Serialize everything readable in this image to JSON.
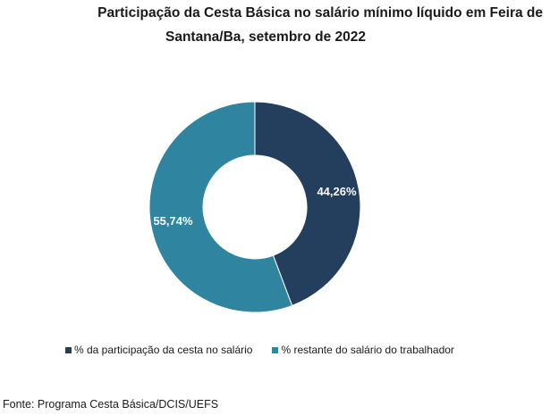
{
  "title": {
    "line1": "Participação da Cesta Básica no salário mínimo líquido em Feira de",
    "line2": "Santana/Ba, setembro de 2022"
  },
  "chart_data": {
    "type": "pie",
    "subtype": "donut",
    "title": "Participação da Cesta Básica no salário mínimo líquido em Feira de Santana/Ba, setembro de 2022",
    "series": [
      {
        "name": "% da participação da cesta no salário",
        "value": 44.26,
        "label": "44,26%",
        "color": "#243e5e"
      },
      {
        "name": "% restante do salário do trabalhador",
        "value": 55.74,
        "label": "55,74%",
        "color": "#2f849f"
      }
    ],
    "legend_position": "bottom"
  },
  "legend": {
    "items": [
      {
        "label": "% da participação da cesta no salário",
        "color": "#243e5e"
      },
      {
        "label": "% restante do salário do trabalhador",
        "color": "#2f849f"
      }
    ]
  },
  "source": "Fonte: Programa Cesta Básica/DCIS/UEFS"
}
